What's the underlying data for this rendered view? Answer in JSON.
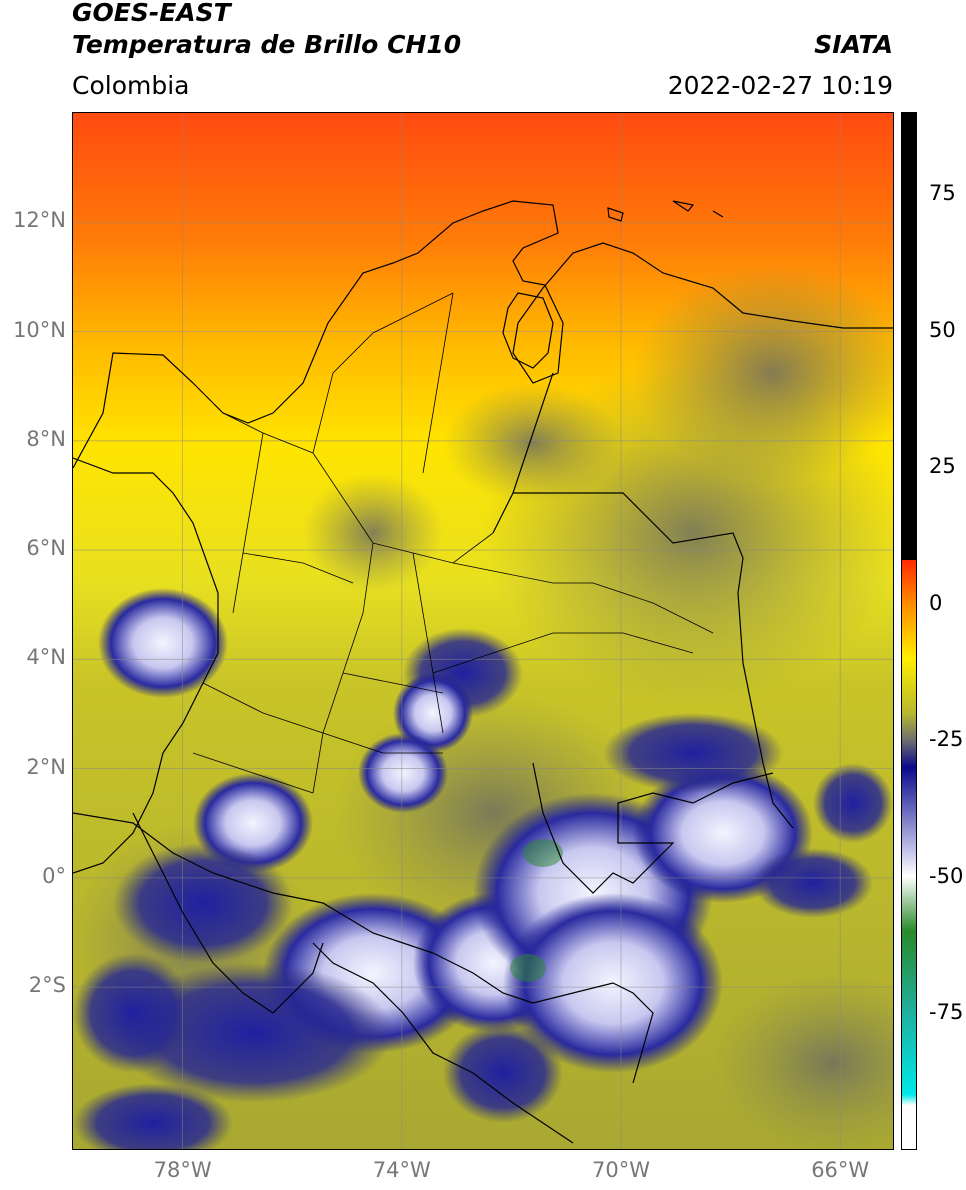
{
  "header": {
    "satellite": "GOES-EAST",
    "product": "Temperatura de Brillo CH10",
    "agency": "SIATA",
    "region": "Colombia",
    "datetime": "2022-02-27 10:19"
  },
  "map": {
    "extent": {
      "lon_min": -80,
      "lon_max": -65,
      "lat_min": -5,
      "lat_max": 14
    },
    "lat_ticks": [
      {
        "value": 12,
        "label": "12°N"
      },
      {
        "value": 10,
        "label": "10°N"
      },
      {
        "value": 8,
        "label": "8°N"
      },
      {
        "value": 6,
        "label": "6°N"
      },
      {
        "value": 4,
        "label": "4°N"
      },
      {
        "value": 2,
        "label": "2°N"
      },
      {
        "value": 0,
        "label": "0°"
      },
      {
        "value": -2,
        "label": "2°S"
      }
    ],
    "lon_ticks": [
      {
        "value": -78,
        "label": "78°W"
      },
      {
        "value": -74,
        "label": "74°W"
      },
      {
        "value": -70,
        "label": "70°W"
      },
      {
        "value": -66,
        "label": "66°W"
      }
    ],
    "gridlines": true
  },
  "colorbar": {
    "range": [
      -100,
      90
    ],
    "ticks": [
      {
        "value": 75,
        "label": "75"
      },
      {
        "value": 50,
        "label": "50"
      },
      {
        "value": 25,
        "label": "25"
      },
      {
        "value": 0,
        "label": "0"
      },
      {
        "value": -25,
        "label": "-25"
      },
      {
        "value": -50,
        "label": "-50"
      },
      {
        "value": -75,
        "label": "-75"
      }
    ],
    "colors": {
      "black_top": "#000000",
      "red": "#ff2a00",
      "orange": "#ff8c00",
      "yellow": "#ffee00",
      "olive": "#b8b830",
      "gray": "#6e6e6e",
      "navy": "#0a0a8c",
      "white": "#ffffff",
      "green": "#2a8a2a",
      "cyan": "#00e8e8"
    }
  },
  "palette": {
    "sea_hot": "#ff4a10",
    "sea_warm": "#ffcc00",
    "land_yellow": "#e8e020",
    "land_olive": "#b8b830",
    "cloud_gray": "#7a7a5a",
    "cloud_navy": "#1a1a90",
    "cloud_white": "#eeeefa",
    "border": "#000000"
  }
}
